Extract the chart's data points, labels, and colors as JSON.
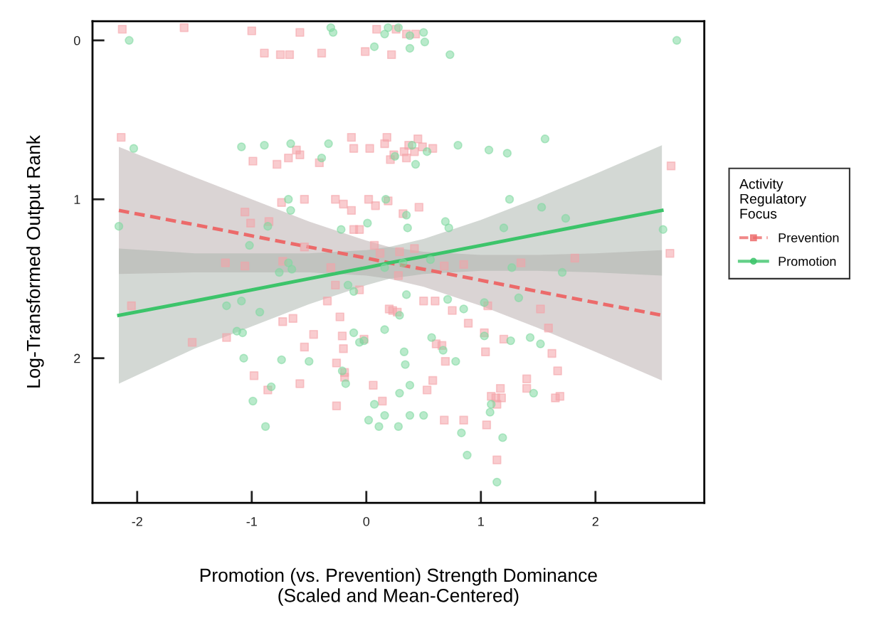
{
  "chart_data": {
    "type": "scatter",
    "xlabel": "Promotion (vs. Prevention) Strength Dominance\n(Scaled and Mean-Centered)",
    "ylabel": "Log-Transformed Output Rank",
    "legend_title": "Activity\nRegulatory\nFocus",
    "legend": "right",
    "grid": false,
    "xlim": [
      -2.39,
      2.95
    ],
    "xticks": [
      -2,
      -1,
      0,
      1,
      2
    ],
    "ylim": [
      2.91,
      -0.12
    ],
    "yticks": [
      0,
      1,
      2
    ],
    "series": [
      {
        "color": "#f4a3a8",
        "marker": "square",
        "x": [
          -2.13,
          -1.59,
          -1.0,
          -0.89,
          -0.75,
          -0.67,
          -0.58,
          -0.39,
          -0.01,
          0.09,
          0.22,
          0.26,
          0.35,
          0.43,
          -2.14,
          -0.99,
          -0.78,
          -0.68,
          -0.61,
          -0.58,
          -0.41,
          -0.13,
          -0.11,
          0.03,
          0.16,
          0.18,
          0.21,
          0.24,
          0.33,
          0.35,
          0.37,
          0.42,
          0.45,
          0.49,
          0.58,
          2.66,
          -0.74,
          -0.54,
          -0.27,
          -0.2,
          -0.13,
          0.02,
          0.08,
          0.19,
          0.32,
          0.46,
          -1.06,
          -1.01,
          -0.85,
          -1.06,
          -1.23,
          -0.73,
          -0.54,
          -0.31,
          -0.11,
          -0.06,
          0.07,
          0.12,
          0.29,
          0.42,
          0.68,
          0.85,
          1.35,
          1.82,
          2.65,
          -0.27,
          -0.06,
          0.28,
          -1.52,
          -2.05,
          -1.22,
          -0.73,
          -0.64,
          -0.54,
          -0.46,
          -0.34,
          -0.23,
          -0.21,
          -0.2,
          -0.19,
          -0.19,
          -0.26,
          -0.26,
          -0.98,
          -0.86,
          -0.58,
          -0.02,
          0.2,
          0.23,
          0.27,
          0.5,
          0.6,
          0.75,
          0.69,
          0.61,
          0.66,
          0.06,
          0.14,
          0.53,
          0.58,
          0.85,
          1.03,
          1.04,
          1.05,
          1.09,
          1.13,
          1.17,
          1.18,
          1.14,
          1.06,
          0.89,
          1.2,
          1.4,
          1.4,
          1.52,
          1.59,
          1.62,
          1.67,
          1.65,
          1.69,
          1.14,
          0.68
        ],
        "values": [
          -0.07,
          -0.08,
          -0.06,
          0.08,
          0.09,
          0.09,
          -0.05,
          0.08,
          0.07,
          -0.07,
          0.09,
          -0.07,
          -0.04,
          -0.04,
          0.61,
          0.76,
          0.78,
          0.74,
          0.69,
          0.72,
          0.77,
          0.61,
          0.68,
          0.68,
          0.65,
          0.61,
          0.75,
          0.72,
          0.7,
          0.74,
          0.66,
          0.7,
          0.62,
          0.67,
          0.68,
          0.79,
          1.02,
          1.0,
          1.0,
          1.03,
          1.07,
          1.0,
          1.04,
          1.01,
          1.09,
          1.05,
          1.08,
          1.15,
          1.14,
          1.42,
          1.4,
          1.39,
          1.3,
          1.43,
          1.19,
          1.19,
          1.29,
          1.34,
          1.33,
          1.31,
          1.42,
          1.41,
          1.4,
          1.37,
          1.34,
          1.54,
          1.57,
          1.48,
          1.9,
          1.67,
          1.87,
          1.77,
          1.75,
          1.93,
          1.85,
          1.64,
          1.74,
          1.86,
          1.94,
          2.09,
          2.12,
          2.03,
          2.3,
          2.11,
          2.2,
          2.16,
          1.88,
          1.69,
          1.7,
          1.71,
          1.64,
          1.64,
          1.7,
          2.02,
          1.91,
          1.92,
          2.17,
          2.27,
          2.2,
          2.14,
          2.39,
          1.84,
          1.96,
          2.42,
          2.24,
          2.25,
          2.19,
          2.25,
          2.29,
          1.67,
          1.78,
          1.88,
          2.13,
          2.19,
          1.69,
          1.81,
          1.97,
          2.08,
          2.25,
          2.24,
          2.64,
          2.39
        ]
      },
      {
        "color": "#7fd9a0",
        "marker": "circle",
        "x": [
          -2.07,
          -0.31,
          -0.29,
          0.07,
          0.16,
          0.19,
          0.28,
          0.38,
          0.38,
          0.5,
          0.51,
          0.73,
          2.71,
          -2.03,
          -1.09,
          -0.89,
          -0.66,
          -0.33,
          -0.39,
          0.25,
          0.4,
          0.43,
          0.8,
          1.07,
          1.23,
          1.56,
          0.53,
          -2.16,
          -0.66,
          -0.68,
          -0.86,
          0.17,
          0.01,
          0.35,
          0.36,
          0.69,
          0.72,
          1.25,
          1.53,
          1.2,
          1.74,
          2.59,
          -1.02,
          -0.76,
          -0.68,
          -0.65,
          -0.22,
          -0.11,
          -0.16,
          0.16,
          0.35,
          0.56,
          1.27,
          1.33,
          1.71,
          -1.09,
          -0.93,
          -1.08,
          -1.07,
          -0.74,
          -0.5,
          -0.99,
          -0.88,
          -0.83,
          -1.22,
          -1.13,
          -0.06,
          -0.11,
          -0.18,
          -0.21,
          -0.02,
          0.02,
          0.07,
          0.11,
          0.16,
          0.16,
          0.29,
          0.33,
          0.34,
          0.28,
          0.29,
          0.38,
          0.38,
          0.5,
          0.32,
          0.57,
          0.67,
          0.78,
          0.83,
          0.88,
          1.03,
          1.08,
          1.14,
          1.19,
          1.09,
          1.26,
          1.43,
          1.46,
          1.52,
          0.85,
          1.03,
          0.71
        ],
        "values": [
          0.0,
          -0.08,
          -0.05,
          0.04,
          -0.04,
          -0.08,
          -0.08,
          -0.03,
          0.05,
          -0.05,
          0.01,
          0.09,
          0.0,
          0.68,
          0.67,
          0.66,
          0.65,
          0.65,
          0.74,
          0.73,
          0.66,
          0.78,
          0.66,
          0.69,
          0.71,
          0.62,
          0.7,
          1.17,
          1.07,
          1.0,
          1.17,
          1.0,
          1.15,
          1.1,
          1.18,
          1.14,
          1.18,
          1.0,
          1.05,
          1.18,
          1.12,
          1.19,
          1.29,
          1.46,
          1.4,
          1.44,
          1.19,
          1.58,
          1.54,
          1.43,
          1.6,
          1.38,
          1.43,
          1.62,
          1.46,
          1.64,
          1.71,
          1.84,
          2.0,
          2.01,
          2.02,
          2.27,
          2.43,
          2.18,
          1.67,
          1.83,
          1.9,
          1.84,
          2.16,
          2.08,
          1.89,
          2.39,
          2.29,
          2.43,
          2.36,
          1.82,
          1.73,
          1.96,
          2.04,
          2.43,
          2.22,
          2.17,
          2.36,
          2.36,
          1.4,
          1.87,
          1.95,
          2.02,
          2.47,
          2.61,
          1.86,
          2.34,
          2.78,
          2.5,
          2.29,
          1.89,
          1.87,
          2.22,
          1.91,
          1.69,
          1.65,
          1.63
        ]
      },
      {
        "type": "line",
        "name": "Prevention",
        "color": "#ec6a6a",
        "line_style": "dashed",
        "x": [
          -2.16,
          -1.5,
          -1,
          -0.5,
          0,
          0.2,
          0.5,
          1,
          1.5,
          2,
          2.58
        ],
        "values": [
          1.07,
          1.16,
          1.23,
          1.3,
          1.37,
          1.4,
          1.44,
          1.51,
          1.58,
          1.65,
          1.73
        ],
        "lower": [
          0.67,
          0.86,
          1.0,
          1.14,
          1.26,
          1.3,
          1.33,
          1.35,
          1.35,
          1.34,
          1.32
        ],
        "upper": [
          1.47,
          1.46,
          1.46,
          1.46,
          1.48,
          1.5,
          1.55,
          1.67,
          1.81,
          1.96,
          2.14
        ]
      },
      {
        "type": "line",
        "name": "Promotion",
        "color": "#3cc46a",
        "line_style": "solid",
        "x": [
          -2.16,
          -1.5,
          -1,
          -0.5,
          0,
          0.2,
          0.5,
          1,
          1.5,
          2,
          2.58
        ],
        "values": [
          1.73,
          1.64,
          1.57,
          1.5,
          1.43,
          1.4,
          1.36,
          1.29,
          1.22,
          1.15,
          1.07
        ],
        "lower": [
          1.31,
          1.34,
          1.34,
          1.34,
          1.32,
          1.3,
          1.25,
          1.13,
          0.99,
          0.84,
          0.66
        ],
        "upper": [
          2.16,
          1.94,
          1.8,
          1.66,
          1.54,
          1.5,
          1.47,
          1.45,
          1.45,
          1.46,
          1.48
        ]
      }
    ]
  }
}
